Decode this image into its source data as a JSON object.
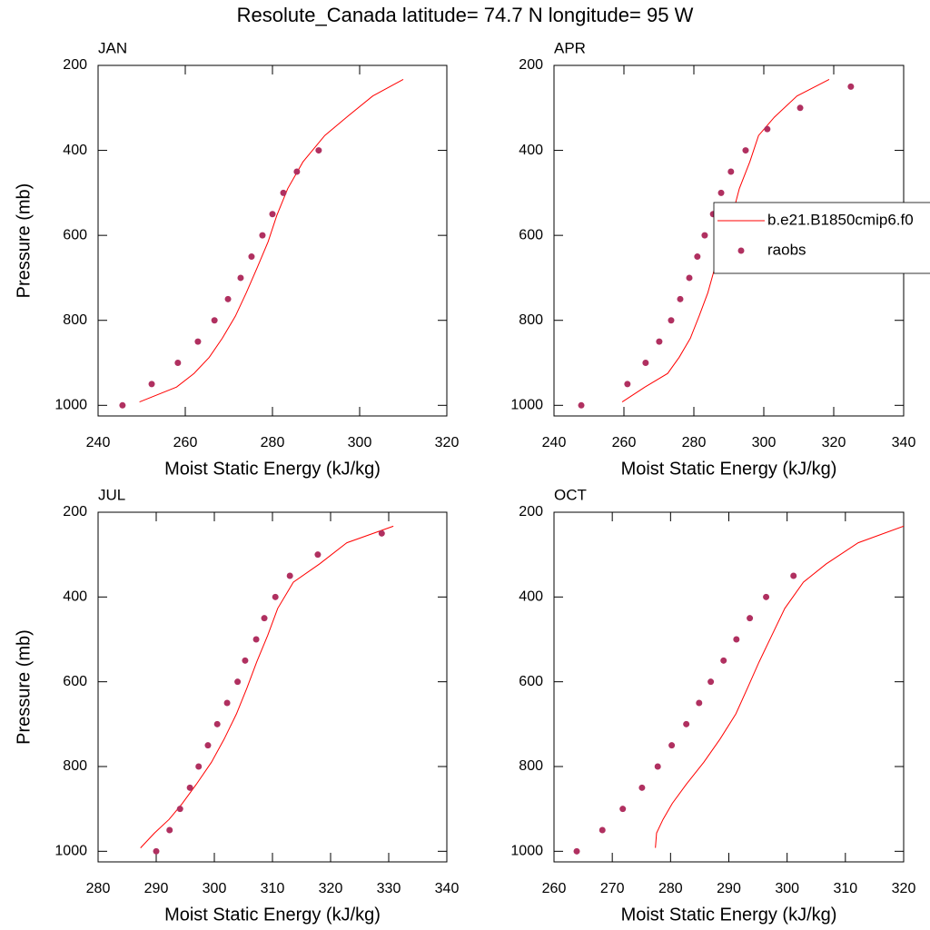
{
  "title": "Resolute_Canada  latitude= 74.7 N longitude= 95 W",
  "chart_data": [
    {
      "type": "line",
      "title": "JAN",
      "xlabel": "Moist Static Energy (kJ/kg)",
      "ylabel": "Pressure (mb)",
      "xlim": [
        240,
        320
      ],
      "xticks": [
        240,
        260,
        280,
        300,
        320
      ],
      "ylim": [
        1025,
        200
      ],
      "yticks": [
        200,
        400,
        600,
        800,
        1000
      ],
      "series": [
        {
          "style": "line",
          "color": "#ff0000",
          "x": [
            249.5,
            258,
            262,
            265.5,
            268.5,
            271.5,
            274,
            276.5,
            279,
            281,
            283.5,
            287,
            292,
            297,
            303,
            310
          ],
          "y": [
            992,
            957,
            925,
            887,
            842,
            790,
            735,
            676,
            615,
            553,
            490,
            427,
            365,
            322,
            272,
            233
          ]
        },
        {
          "style": "markers",
          "color": "#b03060",
          "x": [
            245.6,
            252.3,
            258.3,
            262.9,
            266.7,
            269.8,
            272.7,
            275.2,
            277.7,
            280,
            282.5,
            285.6,
            290.6
          ],
          "y": [
            1000,
            950,
            900,
            850,
            800,
            750,
            700,
            650,
            600,
            550,
            500,
            450,
            400
          ]
        }
      ]
    },
    {
      "type": "line",
      "title": "APR",
      "xlabel": "Moist Static Energy (kJ/kg)",
      "legend": "right",
      "xlim": [
        240,
        340
      ],
      "xticks": [
        240,
        260,
        280,
        300,
        320,
        340
      ],
      "ylim": [
        1025,
        200
      ],
      "yticks": [
        200,
        400,
        600,
        800,
        1000
      ],
      "series": [
        {
          "name": "b.e21.B1850cmip6.f0",
          "style": "line",
          "color": "#ff0000",
          "x": [
            259.5,
            266,
            272.5,
            275.8,
            279,
            281.5,
            284,
            286,
            288.5,
            291,
            293,
            296,
            298.5,
            303,
            309.5,
            318.7
          ],
          "y": [
            992,
            957,
            925,
            887,
            842,
            790,
            735,
            676,
            615,
            553,
            490,
            427,
            365,
            322,
            272,
            233
          ]
        },
        {
          "name": "raobs",
          "style": "markers",
          "color": "#b03060",
          "x": [
            247.8,
            261,
            266.2,
            270.1,
            273.5,
            276.1,
            278.7,
            281,
            283.1,
            285.5,
            287.8,
            290.6,
            294.8,
            301,
            310.4,
            324.9
          ],
          "y": [
            1000,
            950,
            900,
            850,
            800,
            750,
            700,
            650,
            600,
            550,
            500,
            450,
            400,
            350,
            300,
            250
          ]
        }
      ]
    },
    {
      "type": "line",
      "title": "JUL",
      "xlabel": "Moist Static Energy (kJ/kg)",
      "ylabel": "Pressure (mb)",
      "xlim": [
        280,
        340
      ],
      "xticks": [
        280,
        290,
        300,
        310,
        320,
        330,
        340
      ],
      "ylim": [
        1025,
        200
      ],
      "yticks": [
        200,
        400,
        600,
        800,
        1000
      ],
      "series": [
        {
          "style": "line",
          "color": "#ff0000",
          "x": [
            287.3,
            289.7,
            292.2,
            294.5,
            296.9,
            299.5,
            301.7,
            303.8,
            305.6,
            307.3,
            309.2,
            310.9,
            313.6,
            318.1,
            322.8,
            330.8
          ],
          "y": [
            992,
            957,
            925,
            887,
            842,
            790,
            735,
            676,
            615,
            553,
            490,
            427,
            365,
            322,
            272,
            233
          ]
        },
        {
          "style": "markers",
          "color": "#b03060",
          "x": [
            290,
            292.3,
            294.1,
            295.8,
            297.3,
            298.9,
            300.5,
            302.2,
            304,
            305.3,
            307.2,
            308.6,
            310.5,
            313,
            317.8,
            328.8
          ],
          "y": [
            1000,
            950,
            900,
            850,
            800,
            750,
            700,
            650,
            600,
            550,
            500,
            450,
            400,
            350,
            300,
            250
          ]
        }
      ]
    },
    {
      "type": "line",
      "title": "OCT",
      "xlabel": "Moist Static Energy (kJ/kg)",
      "xlim": [
        260,
        320
      ],
      "xticks": [
        260,
        270,
        280,
        290,
        300,
        310,
        320
      ],
      "ylim": [
        1025,
        200
      ],
      "yticks": [
        200,
        400,
        600,
        800,
        1000
      ],
      "series": [
        {
          "style": "line",
          "color": "#ff0000",
          "x": [
            277.4,
            277.6,
            278.7,
            280.3,
            282.7,
            285.7,
            288.5,
            291.2,
            293.2,
            295.2,
            297.4,
            299.6,
            302.8,
            306.7,
            312.2,
            320
          ],
          "y": [
            992,
            957,
            925,
            887,
            842,
            790,
            735,
            676,
            615,
            553,
            490,
            427,
            365,
            322,
            272,
            233
          ]
        },
        {
          "style": "markers",
          "color": "#b03060",
          "x": [
            263.9,
            268.3,
            271.8,
            275.1,
            277.8,
            280.2,
            282.7,
            284.9,
            286.9,
            289.1,
            291.3,
            293.6,
            296.4,
            301.1
          ],
          "y": [
            1000,
            950,
            900,
            850,
            800,
            750,
            700,
            650,
            600,
            550,
            500,
            450,
            400,
            350
          ]
        }
      ]
    }
  ]
}
